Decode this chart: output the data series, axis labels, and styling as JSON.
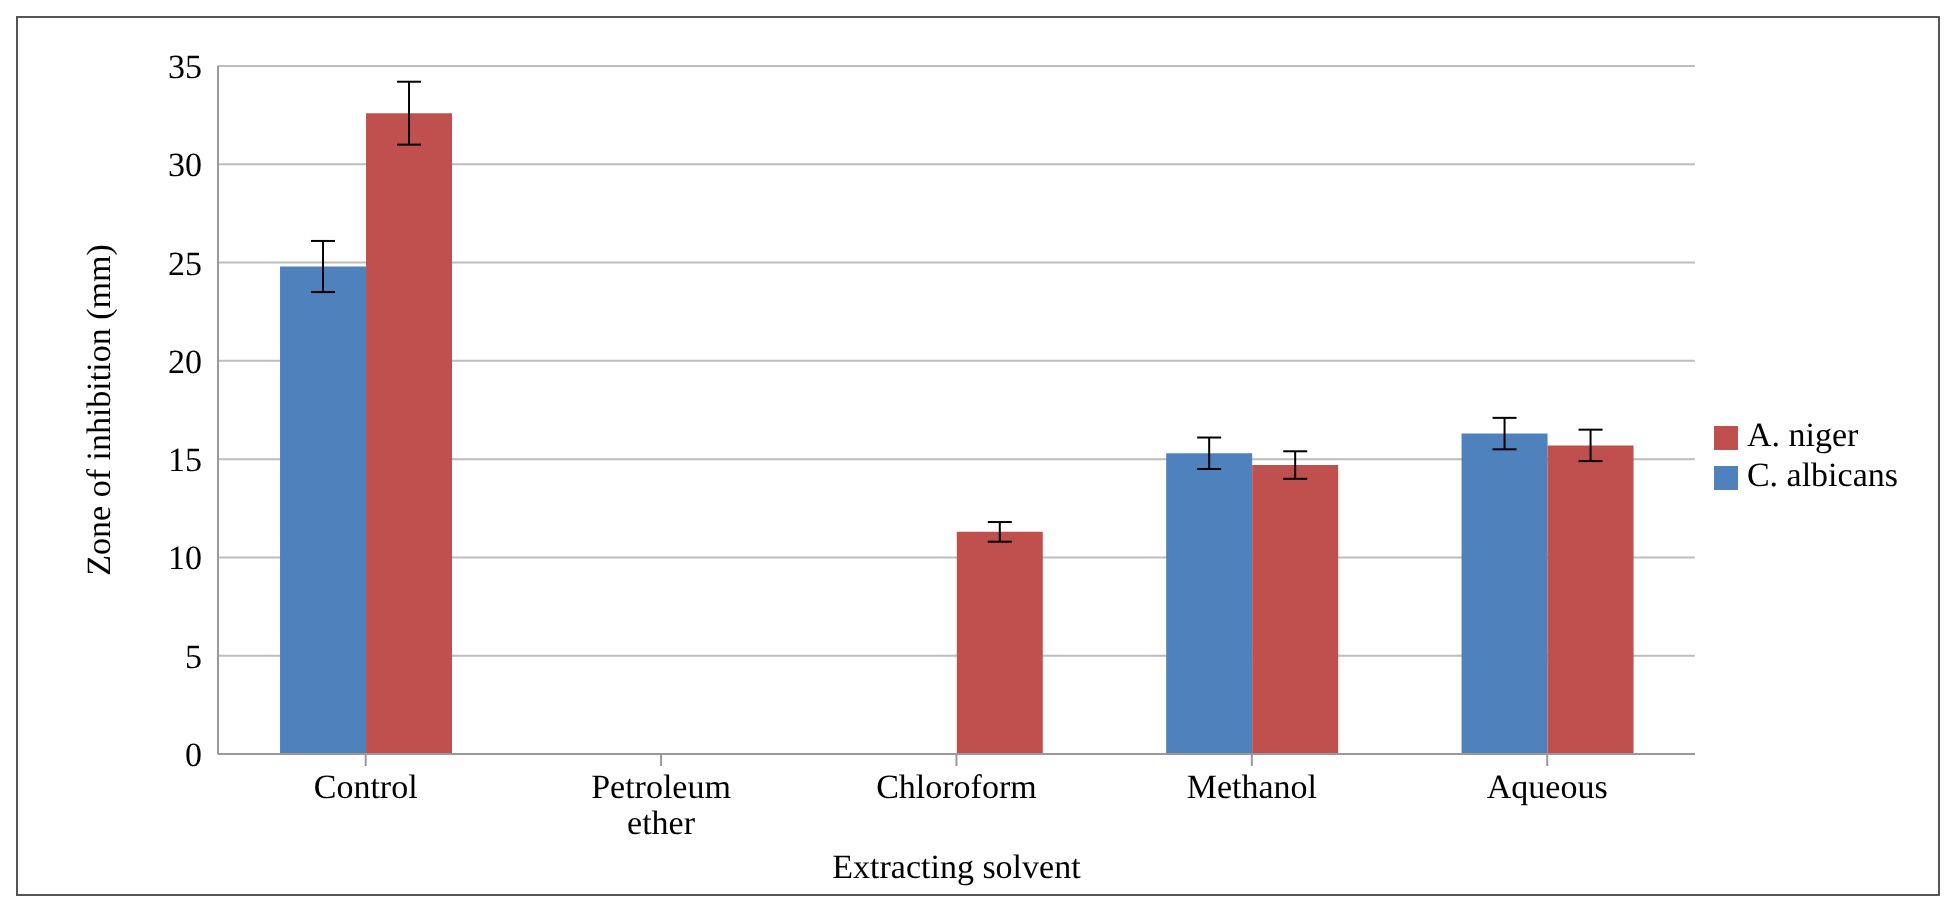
{
  "chart_data": {
    "type": "bar",
    "xlabel": "Extracting solvent",
    "ylabel": "Zone of inhibition (mm)",
    "categories": [
      "Control",
      "Petroleum ether",
      "Chloroform",
      "Methanol",
      "Aqueous"
    ],
    "series": [
      {
        "name": "C. albicans",
        "color": "#4f81bd",
        "values": [
          24.8,
          0,
          0,
          15.3,
          16.3
        ],
        "errors": [
          1.3,
          null,
          null,
          0.8,
          0.8
        ]
      },
      {
        "name": "A. niger",
        "color": "#c0504d",
        "values": [
          32.6,
          0,
          11.3,
          14.7,
          15.7
        ],
        "errors": [
          1.6,
          null,
          0.5,
          0.7,
          0.8
        ]
      }
    ],
    "ylim": [
      0,
      35
    ],
    "yticks": [
      0,
      5,
      10,
      15,
      20,
      25,
      30,
      35
    ],
    "grid": "y",
    "legend": "right"
  }
}
